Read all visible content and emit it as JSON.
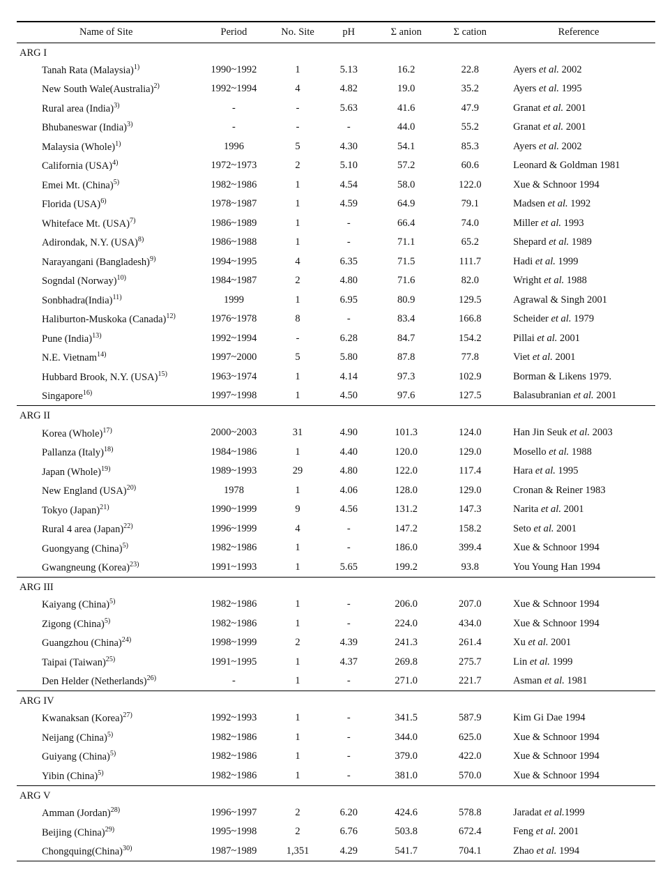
{
  "columns": {
    "site": "Name of Site",
    "period": "Period",
    "nosite": "No. Site",
    "ph": "pH",
    "anion": "Σ anion",
    "cation": "Σ cation",
    "ref": "Reference"
  },
  "col_widths_pct": [
    28,
    12,
    8,
    8,
    10,
    10,
    24
  ],
  "font_family": "Times New Roman",
  "font_size_pt": 11,
  "header_border_top": "double 2.5px #000",
  "row_border": "1px solid #000",
  "background_color": "#ffffff",
  "text_color": "#111111",
  "sections": [
    {
      "label": "ARG I",
      "rows": [
        {
          "site": "Tanah Rata (Malaysia)",
          "sup": "1)",
          "period": "1990~1992",
          "nosite": "1",
          "ph": "5.13",
          "anion": "16.2",
          "cation": "22.8",
          "ref_pre": "Ayers ",
          "ref_ital": "et al.",
          "ref_post": " 2002"
        },
        {
          "site": "New South Wale(Australia)",
          "sup": "2)",
          "period": "1992~1994",
          "nosite": "4",
          "ph": "4.82",
          "anion": "19.0",
          "cation": "35.2",
          "ref_pre": "Ayers ",
          "ref_ital": "et al.",
          "ref_post": " 1995"
        },
        {
          "site": "Rural area (India)",
          "sup": "3)",
          "period": "-",
          "nosite": "-",
          "ph": "5.63",
          "anion": "41.6",
          "cation": "47.9",
          "ref_pre": "Granat ",
          "ref_ital": "et al.",
          "ref_post": " 2001"
        },
        {
          "site": "Bhubaneswar (India)",
          "sup": "3)",
          "period": "-",
          "nosite": "-",
          "ph": "-",
          "anion": "44.0",
          "cation": "55.2",
          "ref_pre": "Granat ",
          "ref_ital": "et al.",
          "ref_post": " 2001"
        },
        {
          "site": "Malaysia (Whole)",
          "sup": "1)",
          "period": "1996",
          "nosite": "5",
          "ph": "4.30",
          "anion": "54.1",
          "cation": "85.3",
          "ref_pre": "Ayers ",
          "ref_ital": "et al.",
          "ref_post": " 2002"
        },
        {
          "site": "California (USA)",
          "sup": "4)",
          "period": "1972~1973",
          "nosite": "2",
          "ph": "5.10",
          "anion": "57.2",
          "cation": "60.6",
          "ref_pre": "Leonard & Goldman 1981",
          "ref_ital": "",
          "ref_post": ""
        },
        {
          "site": "Emei Mt. (China)",
          "sup": "5)",
          "period": "1982~1986",
          "nosite": "1",
          "ph": "4.54",
          "anion": "58.0",
          "cation": "122.0",
          "ref_pre": "Xue & Schnoor 1994",
          "ref_ital": "",
          "ref_post": ""
        },
        {
          "site": "Florida (USA)",
          "sup": "6)",
          "period": "1978~1987",
          "nosite": "1",
          "ph": "4.59",
          "anion": "64.9",
          "cation": "79.1",
          "ref_pre": "Madsen ",
          "ref_ital": "et al.",
          "ref_post": " 1992"
        },
        {
          "site": "Whiteface Mt. (USA)",
          "sup": "7)",
          "period": "1986~1989",
          "nosite": "1",
          "ph": "-",
          "anion": "66.4",
          "cation": "74.0",
          "ref_pre": "Miller ",
          "ref_ital": "et al.",
          "ref_post": " 1993"
        },
        {
          "site": "Adirondak, N.Y. (USA)",
          "sup": "8)",
          "period": "1986~1988",
          "nosite": "1",
          "ph": "-",
          "anion": "71.1",
          "cation": "65.2",
          "ref_pre": "Shepard ",
          "ref_ital": "et al.",
          "ref_post": " 1989"
        },
        {
          "site": "Narayangani (Bangladesh)",
          "sup": "9)",
          "period": "1994~1995",
          "nosite": "4",
          "ph": "6.35",
          "anion": "71.5",
          "cation": "111.7",
          "ref_pre": "Hadi ",
          "ref_ital": "et al.",
          "ref_post": " 1999"
        },
        {
          "site": "Sogndal (Norway)",
          "sup": "10)",
          "period": "1984~1987",
          "nosite": "2",
          "ph": "4.80",
          "anion": "71.6",
          "cation": "82.0",
          "ref_pre": "Wright ",
          "ref_ital": "et al.",
          "ref_post": " 1988"
        },
        {
          "site": "Sonbhadra(India)",
          "sup": "11)",
          "period": "1999",
          "nosite": "1",
          "ph": "6.95",
          "anion": "80.9",
          "cation": "129.5",
          "ref_pre": "Agrawal & Singh 2001",
          "ref_ital": "",
          "ref_post": ""
        },
        {
          "site": "Haliburton-Muskoka (Canada)",
          "sup": "12)",
          "period": "1976~1978",
          "nosite": "8",
          "ph": "-",
          "anion": "83.4",
          "cation": "166.8",
          "ref_pre": "Scheider ",
          "ref_ital": "et al.",
          "ref_post": " 1979"
        },
        {
          "site": "Pune (India)",
          "sup": "13)",
          "period": "1992~1994",
          "nosite": "-",
          "ph": "6.28",
          "anion": "84.7",
          "cation": "154.2",
          "ref_pre": "Pillai ",
          "ref_ital": "et al.",
          "ref_post": " 2001"
        },
        {
          "site": "N.E. Vietnam",
          "sup": "14)",
          "period": "1997~2000",
          "nosite": "5",
          "ph": "5.80",
          "anion": "87.8",
          "cation": "77.8",
          "ref_pre": "Viet ",
          "ref_ital": "et al.",
          "ref_post": " 2001"
        },
        {
          "site": "Hubbard Brook, N.Y. (USA)",
          "sup": "15)",
          "period": "1963~1974",
          "nosite": "1",
          "ph": "4.14",
          "anion": "97.3",
          "cation": "102.9",
          "ref_pre": "Borman & Likens 1979.",
          "ref_ital": "",
          "ref_post": ""
        },
        {
          "site": "Singapore",
          "sup": "16)",
          "period": "1997~1998",
          "nosite": "1",
          "ph": "4.50",
          "anion": "97.6",
          "cation": "127.5",
          "ref_pre": "Balasubranian ",
          "ref_ital": "et al.",
          "ref_post": " 2001"
        }
      ]
    },
    {
      "label": "ARG II",
      "rows": [
        {
          "site": "Korea (Whole)",
          "sup": "17)",
          "period": "2000~2003",
          "nosite": "31",
          "ph": "4.90",
          "anion": "101.3",
          "cation": "124.0",
          "ref_pre": "Han Jin Seuk ",
          "ref_ital": "et al.",
          "ref_post": " 2003"
        },
        {
          "site": "Pallanza (Italy)",
          "sup": "18)",
          "period": "1984~1986",
          "nosite": "1",
          "ph": "4.40",
          "anion": "120.0",
          "cation": "129.0",
          "ref_pre": "Mosello ",
          "ref_ital": "et al.",
          "ref_post": " 1988"
        },
        {
          "site": "Japan (Whole)",
          "sup": "19)",
          "period": "1989~1993",
          "nosite": "29",
          "ph": "4.80",
          "anion": "122.0",
          "cation": "117.4",
          "ref_pre": "Hara ",
          "ref_ital": "et al.",
          "ref_post": " 1995"
        },
        {
          "site": "New England (USA)",
          "sup": "20)",
          "period": "1978",
          "nosite": "1",
          "ph": "4.06",
          "anion": "128.0",
          "cation": "129.0",
          "ref_pre": "Cronan & Reiner 1983",
          "ref_ital": "",
          "ref_post": ""
        },
        {
          "site": "Tokyo (Japan)",
          "sup": "21)",
          "period": "1990~1999",
          "nosite": "9",
          "ph": "4.56",
          "anion": "131.2",
          "cation": "147.3",
          "ref_pre": "Narita ",
          "ref_ital": "et al.",
          "ref_post": " 2001"
        },
        {
          "site": "Rural 4  area (Japan)",
          "sup": "22)",
          "period": "1996~1999",
          "nosite": "4",
          "ph": "-",
          "anion": "147.2",
          "cation": "158.2",
          "ref_pre": "Seto ",
          "ref_ital": "et al.",
          "ref_post": " 2001"
        },
        {
          "site": "Guongyang (China)",
          "sup": "5)",
          "period": "1982~1986",
          "nosite": "1",
          "ph": "-",
          "anion": "186.0",
          "cation": "399.4",
          "ref_pre": "Xue & Schnoor 1994",
          "ref_ital": "",
          "ref_post": ""
        },
        {
          "site": "Gwangneung (Korea)",
          "sup": "23)",
          "period": "1991~1993",
          "nosite": "1",
          "ph": "5.65",
          "anion": "199.2",
          "cation": "93.8",
          "ref_pre": "You Young Han 1994",
          "ref_ital": "",
          "ref_post": ""
        }
      ]
    },
    {
      "label": "ARG III",
      "rows": [
        {
          "site": "Kaiyang (China)",
          "sup": "5)",
          "period": "1982~1986",
          "nosite": "1",
          "ph": "-",
          "anion": "206.0",
          "cation": "207.0",
          "ref_pre": "Xue & Schnoor 1994",
          "ref_ital": "",
          "ref_post": ""
        },
        {
          "site": "Zigong (China)",
          "sup": "5)",
          "period": "1982~1986",
          "nosite": "1",
          "ph": "-",
          "anion": "224.0",
          "cation": "434.0",
          "ref_pre": "Xue & Schnoor 1994",
          "ref_ital": "",
          "ref_post": ""
        },
        {
          "site": "Guangzhou (China)",
          "sup": "24)",
          "period": "1998~1999",
          "nosite": "2",
          "ph": "4.39",
          "anion": "241.3",
          "cation": "261.4",
          "ref_pre": "Xu ",
          "ref_ital": "et al.",
          "ref_post": " 2001"
        },
        {
          "site": "Taipai (Taiwan)",
          "sup": "25)",
          "period": "1991~1995",
          "nosite": "1",
          "ph": "4.37",
          "anion": "269.8",
          "cation": "275.7",
          "ref_pre": "Lin ",
          "ref_ital": "et al.",
          "ref_post": " 1999"
        },
        {
          "site": "Den Helder (Netherlands)",
          "sup": "26)",
          "period": "-",
          "nosite": "1",
          "ph": "-",
          "anion": "271.0",
          "cation": "221.7",
          "ref_pre": "Asman ",
          "ref_ital": "et al.",
          "ref_post": " 1981"
        }
      ]
    },
    {
      "label": "ARG IV",
      "rows": [
        {
          "site": "Kwanaksan (Korea)",
          "sup": "27)",
          "period": "1992~1993",
          "nosite": "1",
          "ph": "-",
          "anion": "341.5",
          "cation": "587.9",
          "ref_pre": "Kim Gi Dae 1994",
          "ref_ital": "",
          "ref_post": ""
        },
        {
          "site": "Neijang (China)",
          "sup": "5)",
          "period": "1982~1986",
          "nosite": "1",
          "ph": "-",
          "anion": "344.0",
          "cation": "625.0",
          "ref_pre": "Xue & Schnoor 1994",
          "ref_ital": "",
          "ref_post": ""
        },
        {
          "site": "Guiyang (China)",
          "sup": "5)",
          "period": "1982~1986",
          "nosite": "1",
          "ph": "-",
          "anion": "379.0",
          "cation": "422.0",
          "ref_pre": "Xue & Schnoor 1994",
          "ref_ital": "",
          "ref_post": ""
        },
        {
          "site": "Yibin (China)",
          "sup": "5)",
          "period": "1982~1986",
          "nosite": "1",
          "ph": "-",
          "anion": "381.0",
          "cation": "570.0",
          "ref_pre": "Xue & Schnoor 1994",
          "ref_ital": "",
          "ref_post": ""
        }
      ]
    },
    {
      "label": "ARG V",
      "rows": [
        {
          "site": "Amman (Jordan)",
          "sup": "28)",
          "period": "1996~1997",
          "nosite": "2",
          "ph": "6.20",
          "anion": "424.6",
          "cation": "578.8",
          "ref_pre": "Jaradat ",
          "ref_ital": "et al.",
          "ref_post": "1999"
        },
        {
          "site": "Beijing (China)",
          "sup": "29)",
          "period": "1995~1998",
          "nosite": "2",
          "ph": "6.76",
          "anion": "503.8",
          "cation": "672.4",
          "ref_pre": "Feng ",
          "ref_ital": "et al.",
          "ref_post": " 2001"
        },
        {
          "site": "Chongquing(China)",
          "sup": "30)",
          "period": "1987~1989",
          "nosite": "1,351",
          "ph": "4.29",
          "anion": "541.7",
          "cation": "704.1",
          "ref_pre": "Zhao ",
          "ref_ital": "et al.",
          "ref_post": " 1994"
        }
      ]
    }
  ]
}
